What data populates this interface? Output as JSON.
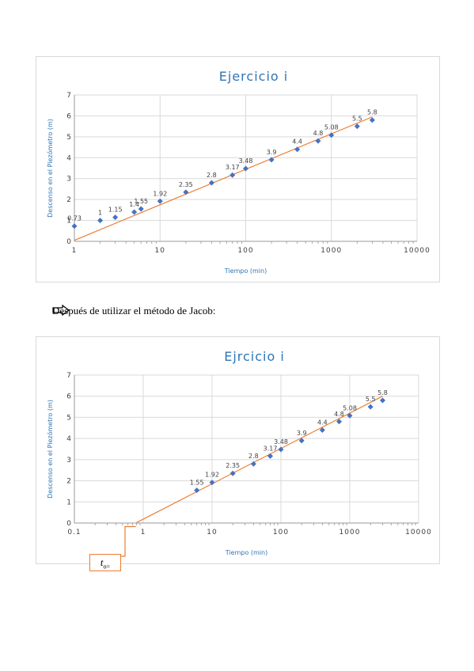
{
  "note": {
    "text": "Después de utilizar el método de Jacob:",
    "icon": "right-arrow-icon"
  },
  "t0_label": {
    "base": "t",
    "sub": "o="
  },
  "colors": {
    "marker": "#4472c4",
    "trend": "#ed7d31",
    "title": "#2e75b6",
    "axis_label": "#2e75b6",
    "grid": "#d9d9d9",
    "tick": "#404040"
  },
  "chart_data": [
    {
      "type": "scatter",
      "title": "Ejercicio i",
      "xlabel": "Tiempo (min)",
      "ylabel": "Descenso en el Piezómetro  (m)",
      "xscale": "log",
      "xlim": [
        1,
        10000
      ],
      "ylim": [
        0,
        7
      ],
      "x_ticks": [
        "1",
        "10",
        "100",
        "1000",
        "10000"
      ],
      "y_ticks": [
        "0",
        "1",
        "2",
        "3",
        "4",
        "5",
        "6",
        "7"
      ],
      "grid": true,
      "x": [
        1,
        2,
        3,
        5,
        6,
        10,
        20,
        40,
        70,
        100,
        200,
        400,
        700,
        1000,
        2000,
        3000
      ],
      "y": [
        0.73,
        1,
        1.15,
        1.4,
        1.55,
        1.92,
        2.35,
        2.8,
        3.17,
        3.48,
        3.9,
        4.4,
        4.8,
        5.08,
        5.5,
        5.8
      ],
      "labels": [
        "0.73",
        "1",
        "1.15",
        "1.4",
        "1.55",
        "1.92",
        "2.35",
        "2.8",
        "3.17",
        "3.48",
        "3.9",
        "4.4",
        "4.8",
        "5.08",
        "5.5",
        "5.8"
      ],
      "trendline": {
        "x": [
          1,
          3000
        ],
        "y": [
          0.05,
          5.95
        ]
      }
    },
    {
      "type": "scatter",
      "title": "Ejrcicio i",
      "xlabel": "Tiempo (min)",
      "ylabel": "Descenso en el Piezómetro  (m)",
      "xscale": "log",
      "xlim": [
        0.1,
        10000
      ],
      "ylim": [
        0,
        7
      ],
      "x_ticks": [
        "0.1",
        "1",
        "10",
        "100",
        "1000",
        "10000"
      ],
      "y_ticks": [
        "0",
        "1",
        "2",
        "3",
        "4",
        "5",
        "6",
        "7"
      ],
      "grid": true,
      "x": [
        6,
        10,
        20,
        40,
        70,
        100,
        200,
        400,
        700,
        1000,
        2000,
        3000
      ],
      "y": [
        1.55,
        1.92,
        2.35,
        2.8,
        3.17,
        3.48,
        3.9,
        4.4,
        4.8,
        5.08,
        5.5,
        5.8
      ],
      "labels": [
        "1.55",
        "1.92",
        "2.35",
        "2.8",
        "3.17",
        "3.48",
        "3.9",
        "4.4",
        "4.8",
        "5.08",
        "5.5",
        "5.8"
      ],
      "trendline": {
        "x": [
          0.8,
          3000
        ],
        "y": [
          0.02,
          6.0
        ]
      }
    }
  ]
}
